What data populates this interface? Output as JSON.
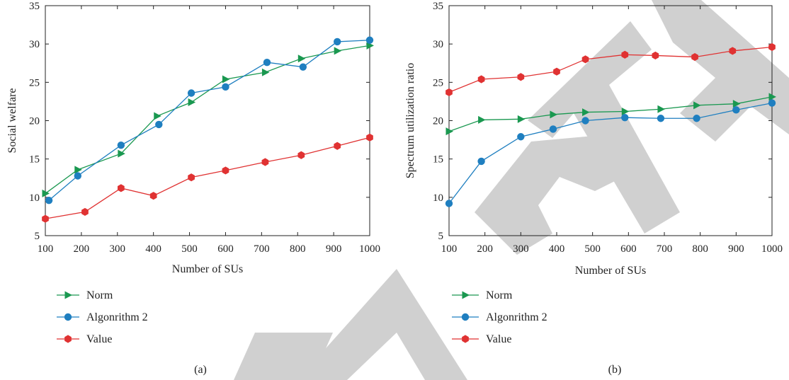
{
  "colors": {
    "norm": "#1a9850",
    "algorithm2": "#1f7fc0",
    "value": "#e03232",
    "watermark": "#c8c8c8"
  },
  "chart_data": [
    {
      "type": "line",
      "caption": "(a)",
      "xlabel": "Number of SUs",
      "ylabel": "Social welfare",
      "xlim": [
        100,
        1000
      ],
      "ylim": [
        5,
        35
      ],
      "xticks": [
        100,
        200,
        300,
        400,
        500,
        600,
        700,
        800,
        900,
        1000
      ],
      "yticks": [
        5,
        10,
        15,
        20,
        25,
        30,
        35
      ],
      "grid": false,
      "legend_position": "below",
      "series": [
        {
          "name": "Norm",
          "marker": "triangle-right",
          "color": "#1a9850",
          "x": [
            100,
            190,
            310,
            410,
            505,
            600,
            710,
            810,
            910,
            1000
          ],
          "y": [
            10.5,
            13.6,
            15.7,
            20.6,
            22.4,
            25.4,
            26.3,
            28.1,
            29.1,
            29.8
          ]
        },
        {
          "name": "Algonrithm 2",
          "marker": "circle",
          "color": "#1f7fc0",
          "x": [
            110,
            190,
            310,
            415,
            505,
            600,
            715,
            815,
            910,
            1000
          ],
          "y": [
            9.6,
            12.8,
            16.8,
            19.5,
            23.6,
            24.4,
            27.6,
            27.0,
            30.3,
            30.5
          ]
        },
        {
          "name": "Value",
          "marker": "hexagon",
          "color": "#e03232",
          "x": [
            100,
            210,
            310,
            400,
            505,
            600,
            710,
            810,
            910,
            1000
          ],
          "y": [
            7.2,
            8.1,
            11.2,
            10.2,
            12.6,
            13.5,
            14.6,
            15.5,
            16.7,
            17.8
          ]
        }
      ]
    },
    {
      "type": "line",
      "caption": "(b)",
      "xlabel": "Number of SUs",
      "ylabel": "Spectrum utilization ratio",
      "xlim": [
        100,
        1000
      ],
      "ylim": [
        5,
        35
      ],
      "xticks": [
        100,
        200,
        300,
        400,
        500,
        600,
        700,
        800,
        900,
        1000
      ],
      "yticks": [
        5,
        10,
        15,
        20,
        25,
        30,
        35
      ],
      "grid": false,
      "legend_position": "below",
      "series": [
        {
          "name": "Norm",
          "marker": "triangle-right",
          "color": "#1a9850",
          "x": [
            100,
            190,
            300,
            390,
            480,
            590,
            690,
            790,
            900,
            1000
          ],
          "y": [
            18.6,
            20.1,
            20.2,
            20.8,
            21.1,
            21.2,
            21.5,
            22.0,
            22.2,
            23.1
          ]
        },
        {
          "name": "Algonrithm 2",
          "marker": "circle",
          "color": "#1f7fc0",
          "x": [
            100,
            190,
            300,
            390,
            480,
            590,
            690,
            790,
            900,
            1000
          ],
          "y": [
            9.2,
            14.7,
            17.9,
            18.9,
            20.0,
            20.4,
            20.3,
            20.3,
            21.4,
            22.3
          ]
        },
        {
          "name": "Value",
          "marker": "hexagon",
          "color": "#e03232",
          "x": [
            100,
            190,
            300,
            400,
            480,
            590,
            675,
            785,
            890,
            1000
          ],
          "y": [
            23.7,
            25.4,
            25.7,
            26.4,
            28.0,
            28.6,
            28.5,
            28.3,
            29.1,
            29.6
          ]
        }
      ]
    }
  ]
}
